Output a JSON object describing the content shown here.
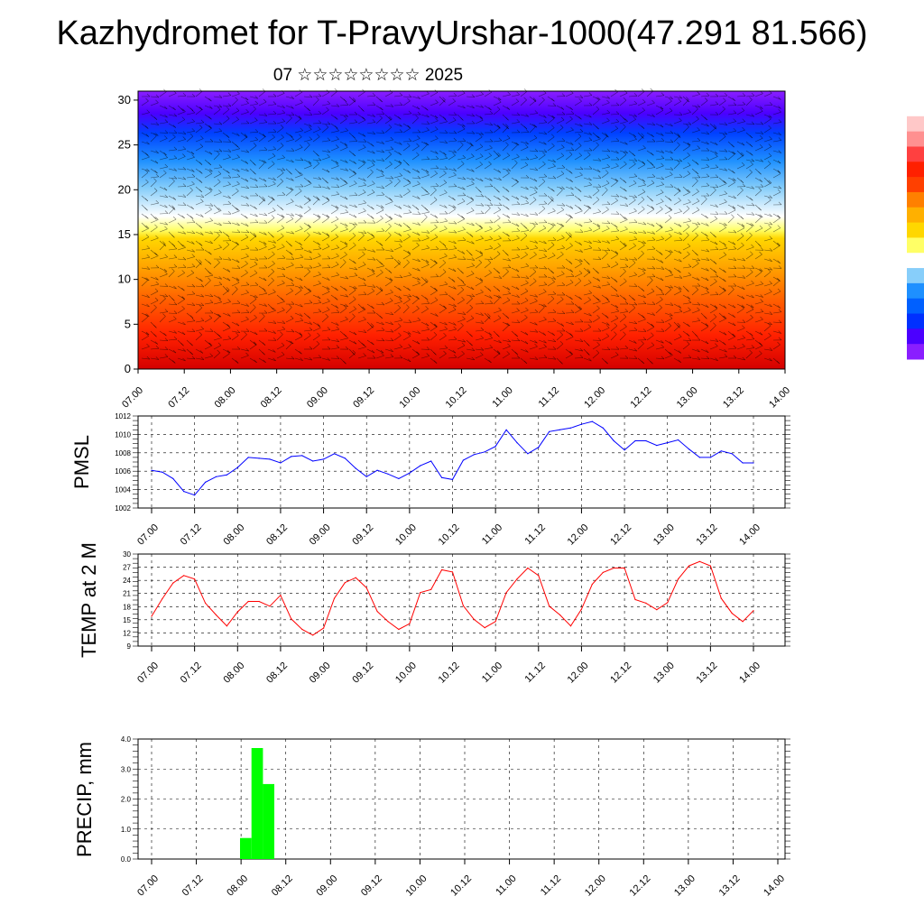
{
  "header": {
    "title": "Kazhydromet for T-PravyUrshar-1000(47.291 81.566)",
    "subtitle": "07 ☆☆☆☆☆☆☆☆ 2025"
  },
  "colors": {
    "pmsl_line": "#0000ff",
    "temp_line": "#ff0000",
    "precip_bar": "#00ff00",
    "colorbar": [
      "#8a1eff",
      "#4b00ff",
      "#0040ff",
      "#1e90ff",
      "#87cefa",
      "#ffffff",
      "#ffff66",
      "#ffd700",
      "#ffa500",
      "#ff6000",
      "#ff2000",
      "#d40000"
    ]
  },
  "chart_data": [
    {
      "type": "heatmap",
      "title": "",
      "xlabel": "",
      "ylabel": "",
      "x_tick_labels": [
        "07.00",
        "07.12",
        "08.00",
        "08.12",
        "09.00",
        "09.12",
        "10.00",
        "10.12",
        "11.00",
        "11.12",
        "12.00",
        "12.12",
        "13.00",
        "13.12",
        "14.00"
      ],
      "y_ticks": [
        0,
        5,
        10,
        15,
        20,
        25,
        30
      ],
      "ylim": [
        0,
        31
      ],
      "grid": false,
      "overlay": "wind barbs",
      "colorbar_colors": [
        "#8a1eff",
        "#4b00ff",
        "#0040ff",
        "#1e90ff",
        "#87cefa",
        "#ffffff",
        "#ffff66",
        "#ffd700",
        "#ffa500",
        "#ff6000",
        "#ff2000",
        "#d40000"
      ]
    },
    {
      "type": "line",
      "title": "",
      "ylabel": "PMSL",
      "ylim": [
        1002,
        1012
      ],
      "y_ticks": [
        1002,
        1004,
        1006,
        1008,
        1010,
        1012
      ],
      "grid": true,
      "x_tick_labels": [
        "07.00",
        "07.12",
        "08.00",
        "08.12",
        "09.00",
        "09.12",
        "10.00",
        "10.12",
        "11.00",
        "11.12",
        "12.00",
        "12.12",
        "13.00",
        "13.12",
        "14.00"
      ],
      "x_hours": [
        0,
        3,
        6,
        9,
        12,
        15,
        18,
        21,
        24,
        27,
        30,
        33,
        36,
        39,
        42,
        45,
        48,
        51,
        54,
        57,
        60,
        63,
        66,
        69,
        72,
        75,
        78,
        81,
        84,
        87,
        90,
        93,
        96,
        99,
        102,
        105,
        108,
        111,
        114,
        117,
        120,
        123,
        126,
        129,
        132,
        135,
        138,
        141,
        144,
        147,
        150,
        153,
        156,
        159,
        162,
        165,
        168
      ],
      "series": [
        {
          "name": "",
          "values": [
            1006.1,
            1005.9,
            1005.2,
            1003.8,
            1003.4,
            1004.8,
            1005.4,
            1005.6,
            1006.4,
            1007.5,
            1007.4,
            1007.3,
            1006.9,
            1007.6,
            1007.7,
            1007.1,
            1007.3,
            1007.9,
            1007.4,
            1006.3,
            1005.4,
            1006.1,
            1005.7,
            1005.2,
            1005.8,
            1006.6,
            1007.1,
            1005.3,
            1005.1,
            1007.2,
            1007.8,
            1008.1,
            1008.7,
            1010.5,
            1009.1,
            1007.9,
            1008.6,
            1010.3,
            1010.5,
            1010.7,
            1011.1,
            1011.4,
            1010.7,
            1009.3,
            1008.3,
            1009.3,
            1009.3,
            1008.8,
            1009.1,
            1009.4,
            1008.4,
            1007.5,
            1007.5,
            1008.2,
            1007.9,
            1006.9,
            1006.9
          ]
        }
      ]
    },
    {
      "type": "line",
      "title": "",
      "ylabel": "TEMP at 2 M",
      "ylim": [
        9,
        30
      ],
      "y_ticks": [
        9,
        12,
        15,
        18,
        21,
        24,
        27,
        30
      ],
      "grid": true,
      "x_tick_labels": [
        "07.00",
        "07.12",
        "08.00",
        "08.12",
        "09.00",
        "09.12",
        "10.00",
        "10.12",
        "11.00",
        "11.12",
        "12.00",
        "12.12",
        "13.00",
        "13.12",
        "14.00"
      ],
      "x_hours": [
        0,
        3,
        6,
        9,
        12,
        15,
        18,
        21,
        24,
        27,
        30,
        33,
        36,
        39,
        42,
        45,
        48,
        51,
        54,
        57,
        60,
        63,
        66,
        69,
        72,
        75,
        78,
        81,
        84,
        87,
        90,
        93,
        96,
        99,
        102,
        105,
        108,
        111,
        114,
        117,
        120,
        123,
        126,
        129,
        132,
        135,
        138,
        141,
        144,
        147,
        150,
        153,
        156,
        159,
        162,
        165,
        168
      ],
      "series": [
        {
          "name": "",
          "values": [
            15.8,
            19.8,
            23.4,
            25.1,
            24.3,
            18.8,
            16.1,
            13.6,
            16.8,
            19.2,
            19.2,
            18.1,
            20.6,
            15.2,
            12.8,
            11.5,
            13.1,
            19.9,
            23.5,
            24.6,
            22.3,
            16.9,
            14.6,
            12.8,
            14.1,
            21.2,
            21.9,
            26.4,
            25.9,
            18.2,
            15.1,
            13.2,
            14.6,
            21.2,
            24.3,
            26.8,
            25.1,
            18.1,
            16.1,
            13.6,
            17.4,
            23.1,
            25.8,
            26.8,
            26.8,
            19.6,
            18.8,
            17.3,
            18.9,
            24.3,
            27.3,
            28.3,
            27.3,
            19.9,
            16.5,
            14.6,
            17.1
          ]
        }
      ]
    },
    {
      "type": "bar",
      "title": "",
      "ylabel": "PRECIP, mm",
      "ylim": [
        0,
        4
      ],
      "y_ticks": [
        "0.0",
        "1.0",
        "2.0",
        "3.0",
        "4.0"
      ],
      "grid": true,
      "x_tick_labels": [
        "07.00",
        "07.12",
        "08.00",
        "08.12",
        "09.00",
        "09.12",
        "10.00",
        "10.12",
        "11.00",
        "11.12",
        "12.00",
        "12.12",
        "13.00",
        "13.12",
        "14.00"
      ],
      "bars": [
        {
          "start_hour": 24,
          "end_hour": 27,
          "value": 0.7
        },
        {
          "start_hour": 27,
          "end_hour": 30,
          "value": 3.7
        },
        {
          "start_hour": 30,
          "end_hour": 33,
          "value": 2.5
        }
      ]
    }
  ]
}
